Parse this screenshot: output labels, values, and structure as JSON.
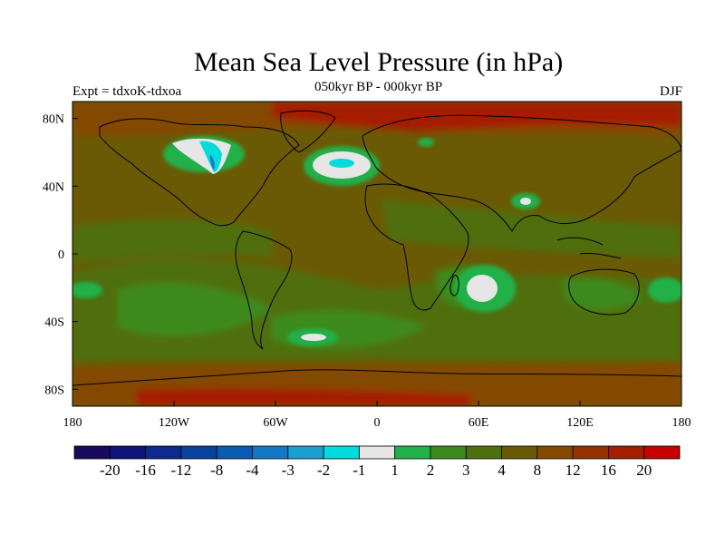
{
  "title": "Mean Sea Level Pressure (in hPa)",
  "subtitle": "050kyr BP - 000kyr BP",
  "left_label": "Expt = tdxoK-tdxoa",
  "right_label": "DJF",
  "x_ticks": [
    {
      "lon": -180,
      "label": "180"
    },
    {
      "lon": -120,
      "label": "120W"
    },
    {
      "lon": -60,
      "label": "60W"
    },
    {
      "lon": 0,
      "label": "0"
    },
    {
      "lon": 60,
      "label": "60E"
    },
    {
      "lon": 120,
      "label": "120E"
    },
    {
      "lon": 180,
      "label": "180"
    }
  ],
  "y_ticks": [
    {
      "lat": 80,
      "label": "80N"
    },
    {
      "lat": 40,
      "label": "40N"
    },
    {
      "lat": 0,
      "label": "0"
    },
    {
      "lat": -40,
      "label": "40S"
    },
    {
      "lat": -80,
      "label": "80S"
    }
  ],
  "colorbar": {
    "colors": [
      "#1a0a5c",
      "#10137a",
      "#0d2a8c",
      "#08429c",
      "#0a5cb0",
      "#1478c4",
      "#1b9fd0",
      "#00dcdc",
      "#e6e6e6",
      "#21b04a",
      "#3c8a1e",
      "#4f6e0f",
      "#6b5a05",
      "#844a02",
      "#953300",
      "#a51e00",
      "#c80000"
    ],
    "labels": [
      "-20",
      "-16",
      "-12",
      "-8",
      "-4",
      "-3",
      "-2",
      "-1",
      "1",
      "2",
      "3",
      "4",
      "8",
      "12",
      "16",
      "20"
    ]
  },
  "field_colors": {
    "ocean_base": "#6b5a05",
    "land_base": "#6b5a05",
    "mid_green": "#4f6e0f",
    "green": "#3c8a1e",
    "bright_green": "#21b04a",
    "white": "#e6e6e6",
    "cyan": "#00dcdc",
    "blue": "#1478c4",
    "brown": "#844a02",
    "red": "#a51e00"
  }
}
